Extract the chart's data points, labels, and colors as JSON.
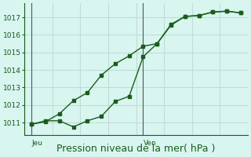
{
  "background_color": "#d8f5f0",
  "grid_color": "#c0ddd8",
  "line_color": "#1a5c1a",
  "marker_color": "#1a5c1a",
  "axis_label_color": "#1a5c1a",
  "tick_color": "#1a5c1a",
  "title": "Pression niveau de la mer( hPa )",
  "title_fontsize": 9,
  "ylim": [
    1010.3,
    1017.8
  ],
  "yticks": [
    1011,
    1012,
    1013,
    1014,
    1015,
    1016,
    1017
  ],
  "day_labels": [
    "Jeu",
    "Ven"
  ],
  "day_positions": [
    0,
    8
  ],
  "line1_x": [
    0,
    1,
    2,
    3,
    4,
    5,
    6,
    7,
    8,
    9,
    10,
    11,
    12,
    13,
    14,
    15
  ],
  "line1_y": [
    1010.9,
    1011.1,
    1011.1,
    1010.75,
    1011.1,
    1011.35,
    1012.2,
    1012.5,
    1014.75,
    1015.5,
    1016.55,
    1017.05,
    1017.1,
    1017.3,
    1017.35,
    1017.25
  ],
  "line2_x": [
    0,
    1,
    2,
    3,
    4,
    5,
    6,
    7,
    8,
    9,
    10,
    11,
    12,
    13,
    14,
    15
  ],
  "line2_y": [
    1010.9,
    1011.05,
    1011.5,
    1012.25,
    1012.7,
    1013.7,
    1014.35,
    1014.8,
    1015.35,
    1015.5,
    1016.6,
    1017.05,
    1017.1,
    1017.3,
    1017.35,
    1017.25
  ],
  "vline_positions": [
    0,
    8
  ],
  "vline_color": "#555555"
}
